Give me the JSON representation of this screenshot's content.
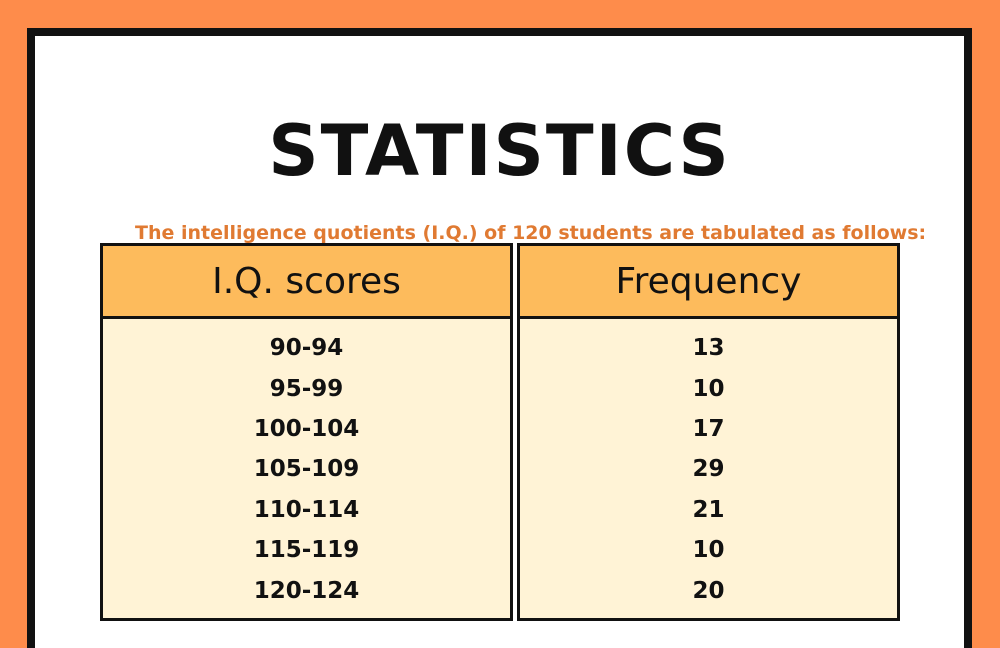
{
  "title": "STATISTICS",
  "subtitle": "The intelligence quotients (I.Q.) of 120 students are tabulated as follows:",
  "table": {
    "headers": [
      "I.Q. scores",
      "Frequency"
    ],
    "rows": [
      [
        "90-94",
        "13"
      ],
      [
        "95-99",
        "10"
      ],
      [
        "100-104",
        "17"
      ],
      [
        "105-109",
        "29"
      ],
      [
        "110-114",
        "21"
      ],
      [
        "115-119",
        "10"
      ],
      [
        "120-124",
        "20"
      ]
    ]
  },
  "colors": {
    "background": "#fe8c4b",
    "header_fill": "#fdbb5c",
    "cell_fill": "#fff3d6",
    "subtitle": "#e07a32"
  }
}
